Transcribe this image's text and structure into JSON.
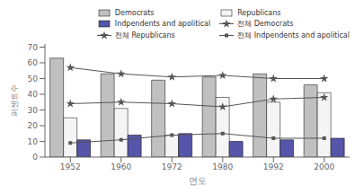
{
  "chart_data": {
    "type": "bar",
    "xlabel": "연도",
    "ylabel": "퍼센트수",
    "categories": [
      "1952",
      "1960",
      "1972",
      "1980",
      "1992",
      "2000"
    ],
    "series": [
      {
        "name": "Democrats",
        "type": "bar",
        "color": "#c0c0c0",
        "values": [
          63,
          53,
          49,
          51,
          53,
          46
        ]
      },
      {
        "name": "Republicans",
        "type": "bar",
        "color": "#f5f5f5",
        "values": [
          25,
          31,
          14,
          38,
          35,
          41
        ]
      },
      {
        "name": "Indpendents and apolitical",
        "type": "bar",
        "color": "#5555aa",
        "values": [
          11,
          14,
          15,
          10,
          11,
          12
        ]
      },
      {
        "name": "전체 Democrats",
        "type": "line",
        "color": "#555555",
        "marker": "star",
        "values": [
          57,
          53,
          51,
          52,
          50,
          50
        ]
      },
      {
        "name": "전체 Republicans",
        "type": "line",
        "color": "#555555",
        "marker": "star",
        "values": [
          34,
          35,
          34,
          32,
          37,
          38
        ]
      },
      {
        "name": "전체 Indpendents and apolitical",
        "type": "line",
        "color": "#555555",
        "marker": "square",
        "values": [
          9,
          11,
          14,
          15,
          12,
          12
        ]
      }
    ],
    "ylim": [
      0,
      72
    ],
    "yticks": [
      0,
      10,
      20,
      30,
      40,
      50,
      60,
      70
    ],
    "grid": false,
    "legend": "upper right"
  }
}
